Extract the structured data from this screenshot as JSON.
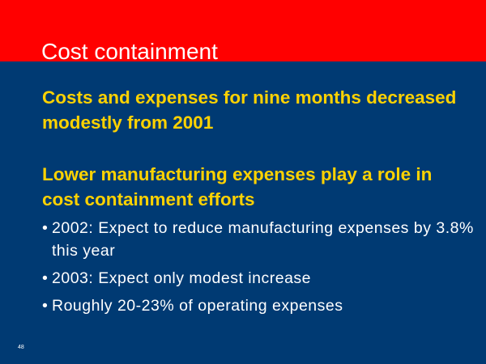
{
  "slide": {
    "title": "Cost containment",
    "points": [
      "Costs and expenses for nine months decreased modestly from 2001",
      "Lower manufacturing expenses play a role in cost containment efforts"
    ],
    "bullet_glyph": "•",
    "subpoints": [
      "2002: Expect to reduce manufacturing expenses by 3.8% this year",
      "2003: Expect only modest increase",
      "Roughly 20-23% of operating expenses"
    ],
    "page_number": "48"
  },
  "colors": {
    "header_band": "#ff0000",
    "background": "#003a73",
    "point_text": "#ffd200",
    "title_text": "#ffffff",
    "subpoint_text": "#ffffff"
  }
}
